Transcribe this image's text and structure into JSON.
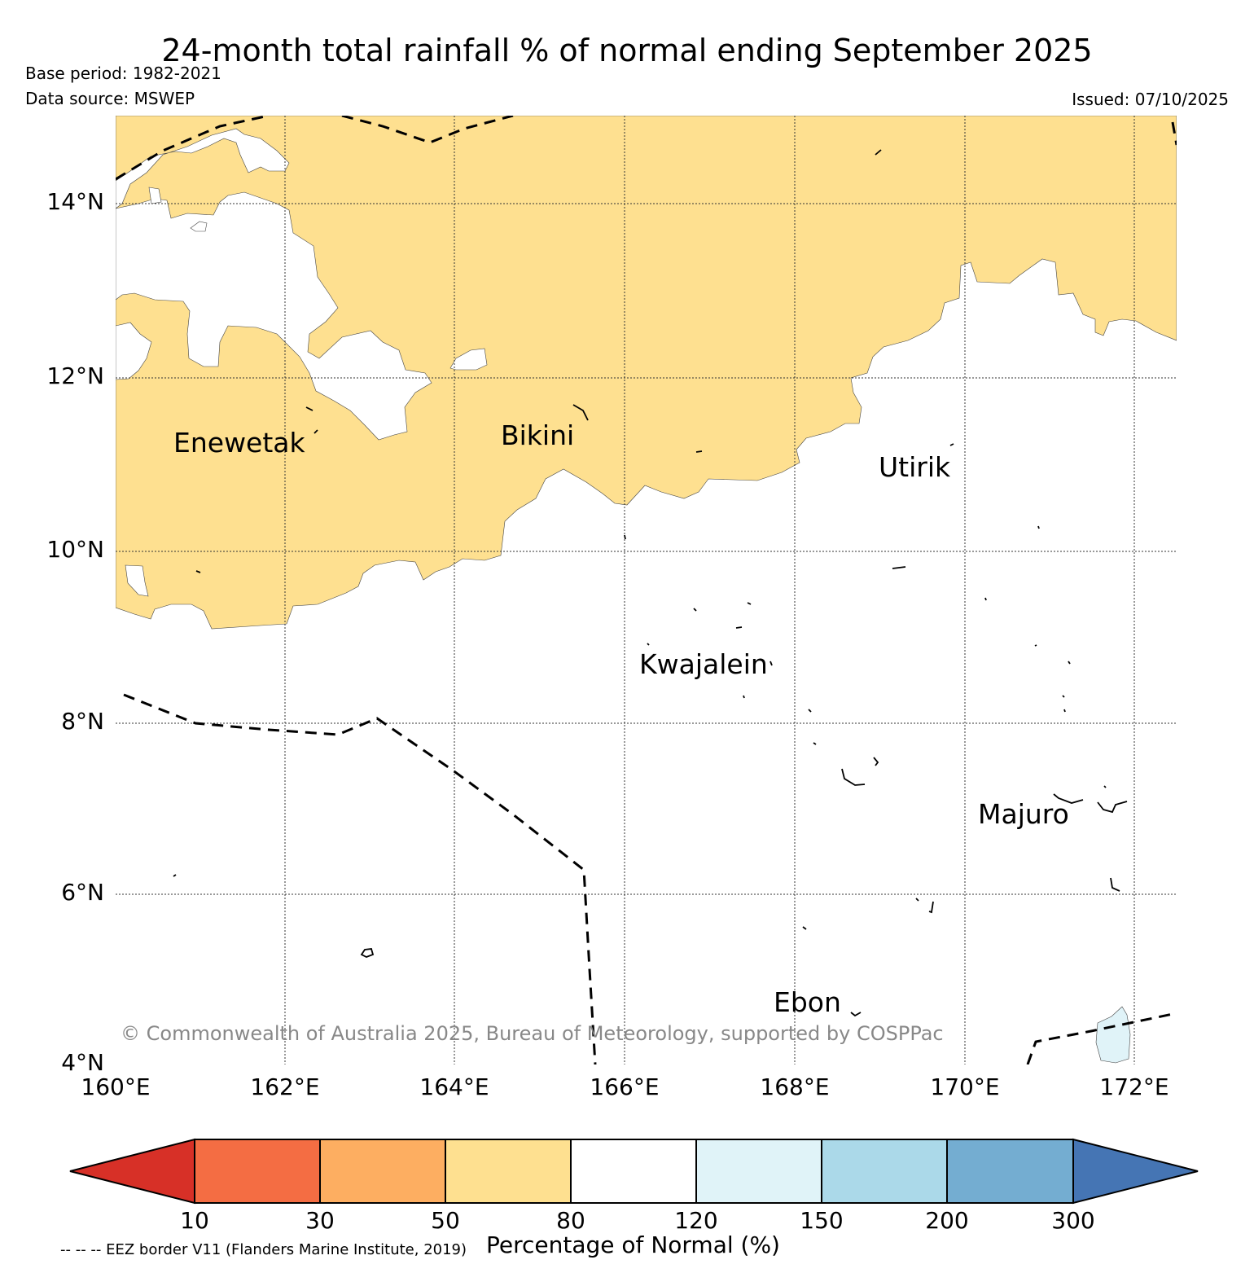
{
  "title": "24-month total rainfall % of normal ending September 2025",
  "base_period": "Base period: 1982-2021",
  "data_source": "Data source: MSWEP",
  "issued": "Issued: 07/10/2025",
  "map": {
    "lon_range": [
      160,
      172.5
    ],
    "lat_range": [
      4,
      15
    ],
    "lat_labels": [
      "14°N",
      "12°N",
      "10°N",
      "8°N",
      "6°N",
      "4°N"
    ],
    "lon_labels": [
      "160°E",
      "162°E",
      "164°E",
      "166°E",
      "168°E",
      "170°E",
      "172°E"
    ],
    "places": [
      {
        "name": "Enewetak"
      },
      {
        "name": "Bikini"
      },
      {
        "name": "Utirik"
      },
      {
        "name": "Kwajalein"
      },
      {
        "name": "Majuro"
      },
      {
        "name": "Ebon"
      }
    ],
    "copyright": "© Commonwealth of Australia 2025, Bureau of Meteorology, supported by COSPPac"
  },
  "colorbar": {
    "title": "Percentage of Normal (%)",
    "boundaries": [
      "10",
      "30",
      "50",
      "80",
      "120",
      "150",
      "200",
      "300"
    ],
    "colors": [
      "#d73027",
      "#f46d43",
      "#fdae61",
      "#fee090",
      "#ffffff",
      "#e0f3f8",
      "#abd9e9",
      "#74add1",
      "#4575b4"
    ]
  },
  "eez_note": "-- -- -- EEZ border V11 (Flanders Marine Institute, 2019)"
}
